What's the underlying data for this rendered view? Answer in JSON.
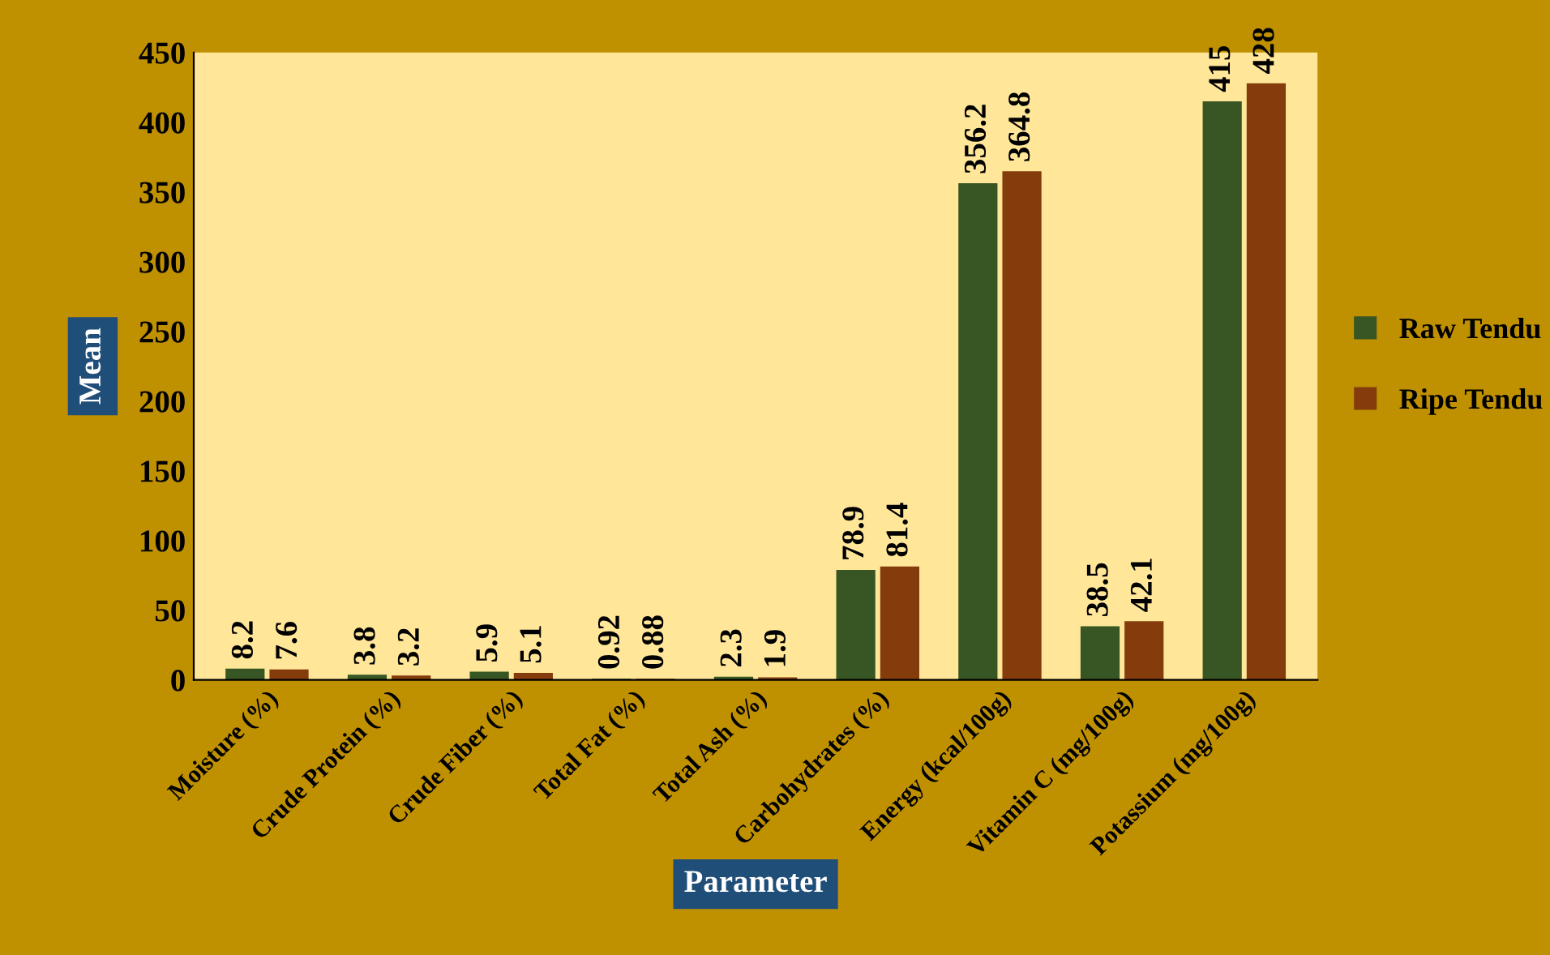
{
  "chart_data": {
    "type": "bar",
    "xlabel": "Parameter",
    "ylabel": "Mean",
    "categories": [
      "Moisture (%)",
      "Crude Protein (%)",
      "Crude Fiber (%)",
      "Total Fat (%)",
      "Total Ash (%)",
      "Carbohydrates (%)",
      "Energy (kcal/100g)",
      "Vitamin C (mg/100g)",
      "Potassium (mg/100g)"
    ],
    "series": [
      {
        "name": "Raw Tendu",
        "color": "#375623",
        "values": [
          8.2,
          3.8,
          5.9,
          0.92,
          2.3,
          78.9,
          356.2,
          38.5,
          415
        ]
      },
      {
        "name": "Ripe Tendu",
        "color": "#843c0c",
        "values": [
          7.6,
          3.2,
          5.1,
          0.88,
          1.9,
          81.4,
          364.8,
          42.1,
          428
        ]
      }
    ],
    "ylim": [
      0,
      450
    ],
    "yticks": [
      0,
      50,
      100,
      150,
      200,
      250,
      300,
      350,
      400,
      450
    ],
    "data_labels": true,
    "grid": false,
    "legend": "right"
  }
}
